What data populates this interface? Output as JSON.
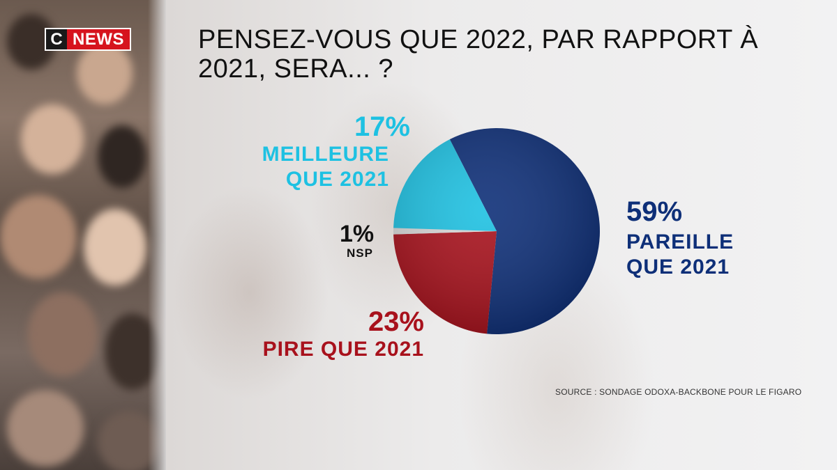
{
  "logo": {
    "c": "C",
    "news": "NEWS"
  },
  "title": "PENSEZ-VOUS QUE 2022, PAR RAPPORT À 2021, SERA... ?",
  "source": "SOURCE : SONDAGE ODOXA-BACKBONE POUR LE FIGARO",
  "colors": {
    "pareille": "#0e2f78",
    "meilleure": "#1ec1e2",
    "pire": "#a8111c",
    "nsp": "#d9d9d9"
  },
  "chart_data": {
    "type": "pie",
    "title": "PENSEZ-VOUS QUE 2022, PAR RAPPORT À 2021, SERA... ?",
    "slices": [
      {
        "key": "pareille",
        "pct": "59%",
        "value": 59,
        "label_line1": "PAREILLE",
        "label_line2": "QUE 2021"
      },
      {
        "key": "pire",
        "pct": "23%",
        "value": 23,
        "label_line1": "PIRE QUE 2021"
      },
      {
        "key": "nsp",
        "pct": "1%",
        "value": 1,
        "label_line1": "NSP"
      },
      {
        "key": "meilleure",
        "pct": "17%",
        "value": 17,
        "label_line1": "MEILLEURE",
        "label_line2": "QUE 2021"
      }
    ]
  }
}
